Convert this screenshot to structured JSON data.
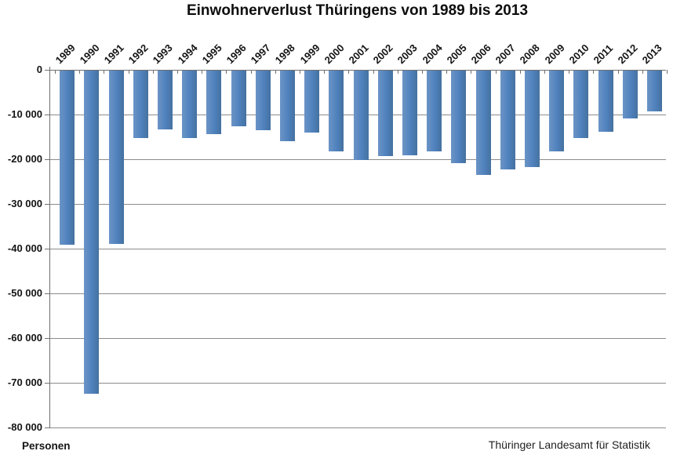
{
  "title": "Einwohnerverlust Thüringens von 1989 bis 2013",
  "unit_label": "Personen",
  "source": "Thüringer Landesamt für Statistik",
  "colors": {
    "bar": "#4f81bd",
    "gridline": "#8c8c8c",
    "axis": "#707070",
    "text": "#141414",
    "background": "#ffffff"
  },
  "y_axis": {
    "tick_labels": [
      "0",
      "-10 000",
      "-20 000",
      "-30 000",
      "-40 000",
      "-50 000",
      "-60 000",
      "-70 000",
      "-80 000"
    ]
  },
  "chart_data": {
    "type": "bar",
    "title": "Einwohnerverlust Thüringens von 1989 bis 2013",
    "categories": [
      "1989",
      "1990",
      "1991",
      "1992",
      "1993",
      "1994",
      "1995",
      "1996",
      "1997",
      "1998",
      "1999",
      "2000",
      "2001",
      "2002",
      "2003",
      "2004",
      "2005",
      "2006",
      "2007",
      "2008",
      "2009",
      "2010",
      "2011",
      "2012",
      "2013"
    ],
    "values": [
      -39000,
      -72200,
      -38800,
      -15000,
      -13200,
      -15100,
      -14200,
      -12500,
      -13300,
      -15700,
      -13800,
      -18000,
      -20000,
      -19200,
      -19000,
      -18000,
      -20700,
      -23300,
      -22100,
      -21500,
      -18000,
      -15100,
      -13700,
      -10700,
      -9200
    ],
    "xlabel": "",
    "ylabel": "Personen",
    "ylim": [
      -80000,
      0
    ],
    "ytick_step": 10000,
    "grid": true,
    "legend_position": "none",
    "bar_color": "#4f81bd",
    "orientation": "vertical-negative",
    "source": "Thüringer Landesamt für Statistik"
  }
}
